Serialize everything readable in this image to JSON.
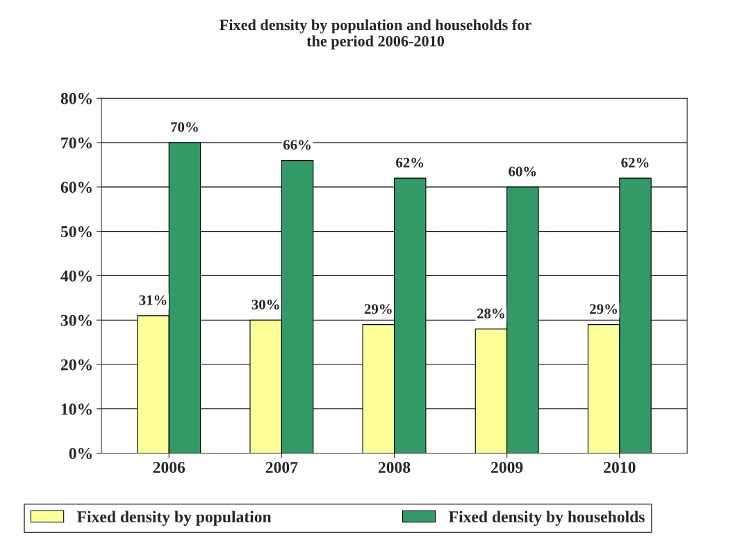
{
  "chart_data": {
    "type": "bar",
    "title": "Fixed density by population and households for\nthe period 2006-2010",
    "categories": [
      "2006",
      "2007",
      "2008",
      "2009",
      "2010"
    ],
    "series": [
      {
        "name": "Fixed density by population",
        "color": "#ffff99",
        "values": [
          31,
          30,
          29,
          28,
          29
        ],
        "value_labels": [
          "31%",
          "30%",
          "29%",
          "28%",
          "29%"
        ]
      },
      {
        "name": "Fixed density by households",
        "color": "#339966",
        "values": [
          70,
          66,
          62,
          60,
          62
        ],
        "value_labels": [
          "70%",
          "66%",
          "62%",
          "60%",
          "62%"
        ]
      }
    ],
    "ylim": [
      0,
      80
    ],
    "yticks": [
      {
        "value": 0,
        "label": "0%"
      },
      {
        "value": 10,
        "label": "10%"
      },
      {
        "value": 20,
        "label": "20%"
      },
      {
        "value": 30,
        "label": "30%"
      },
      {
        "value": 40,
        "label": "40%"
      },
      {
        "value": 50,
        "label": "50%"
      },
      {
        "value": 60,
        "label": "60%"
      },
      {
        "value": 70,
        "label": "70%"
      },
      {
        "value": 80,
        "label": "80%"
      }
    ],
    "grid": "y",
    "legend": "bottom"
  }
}
